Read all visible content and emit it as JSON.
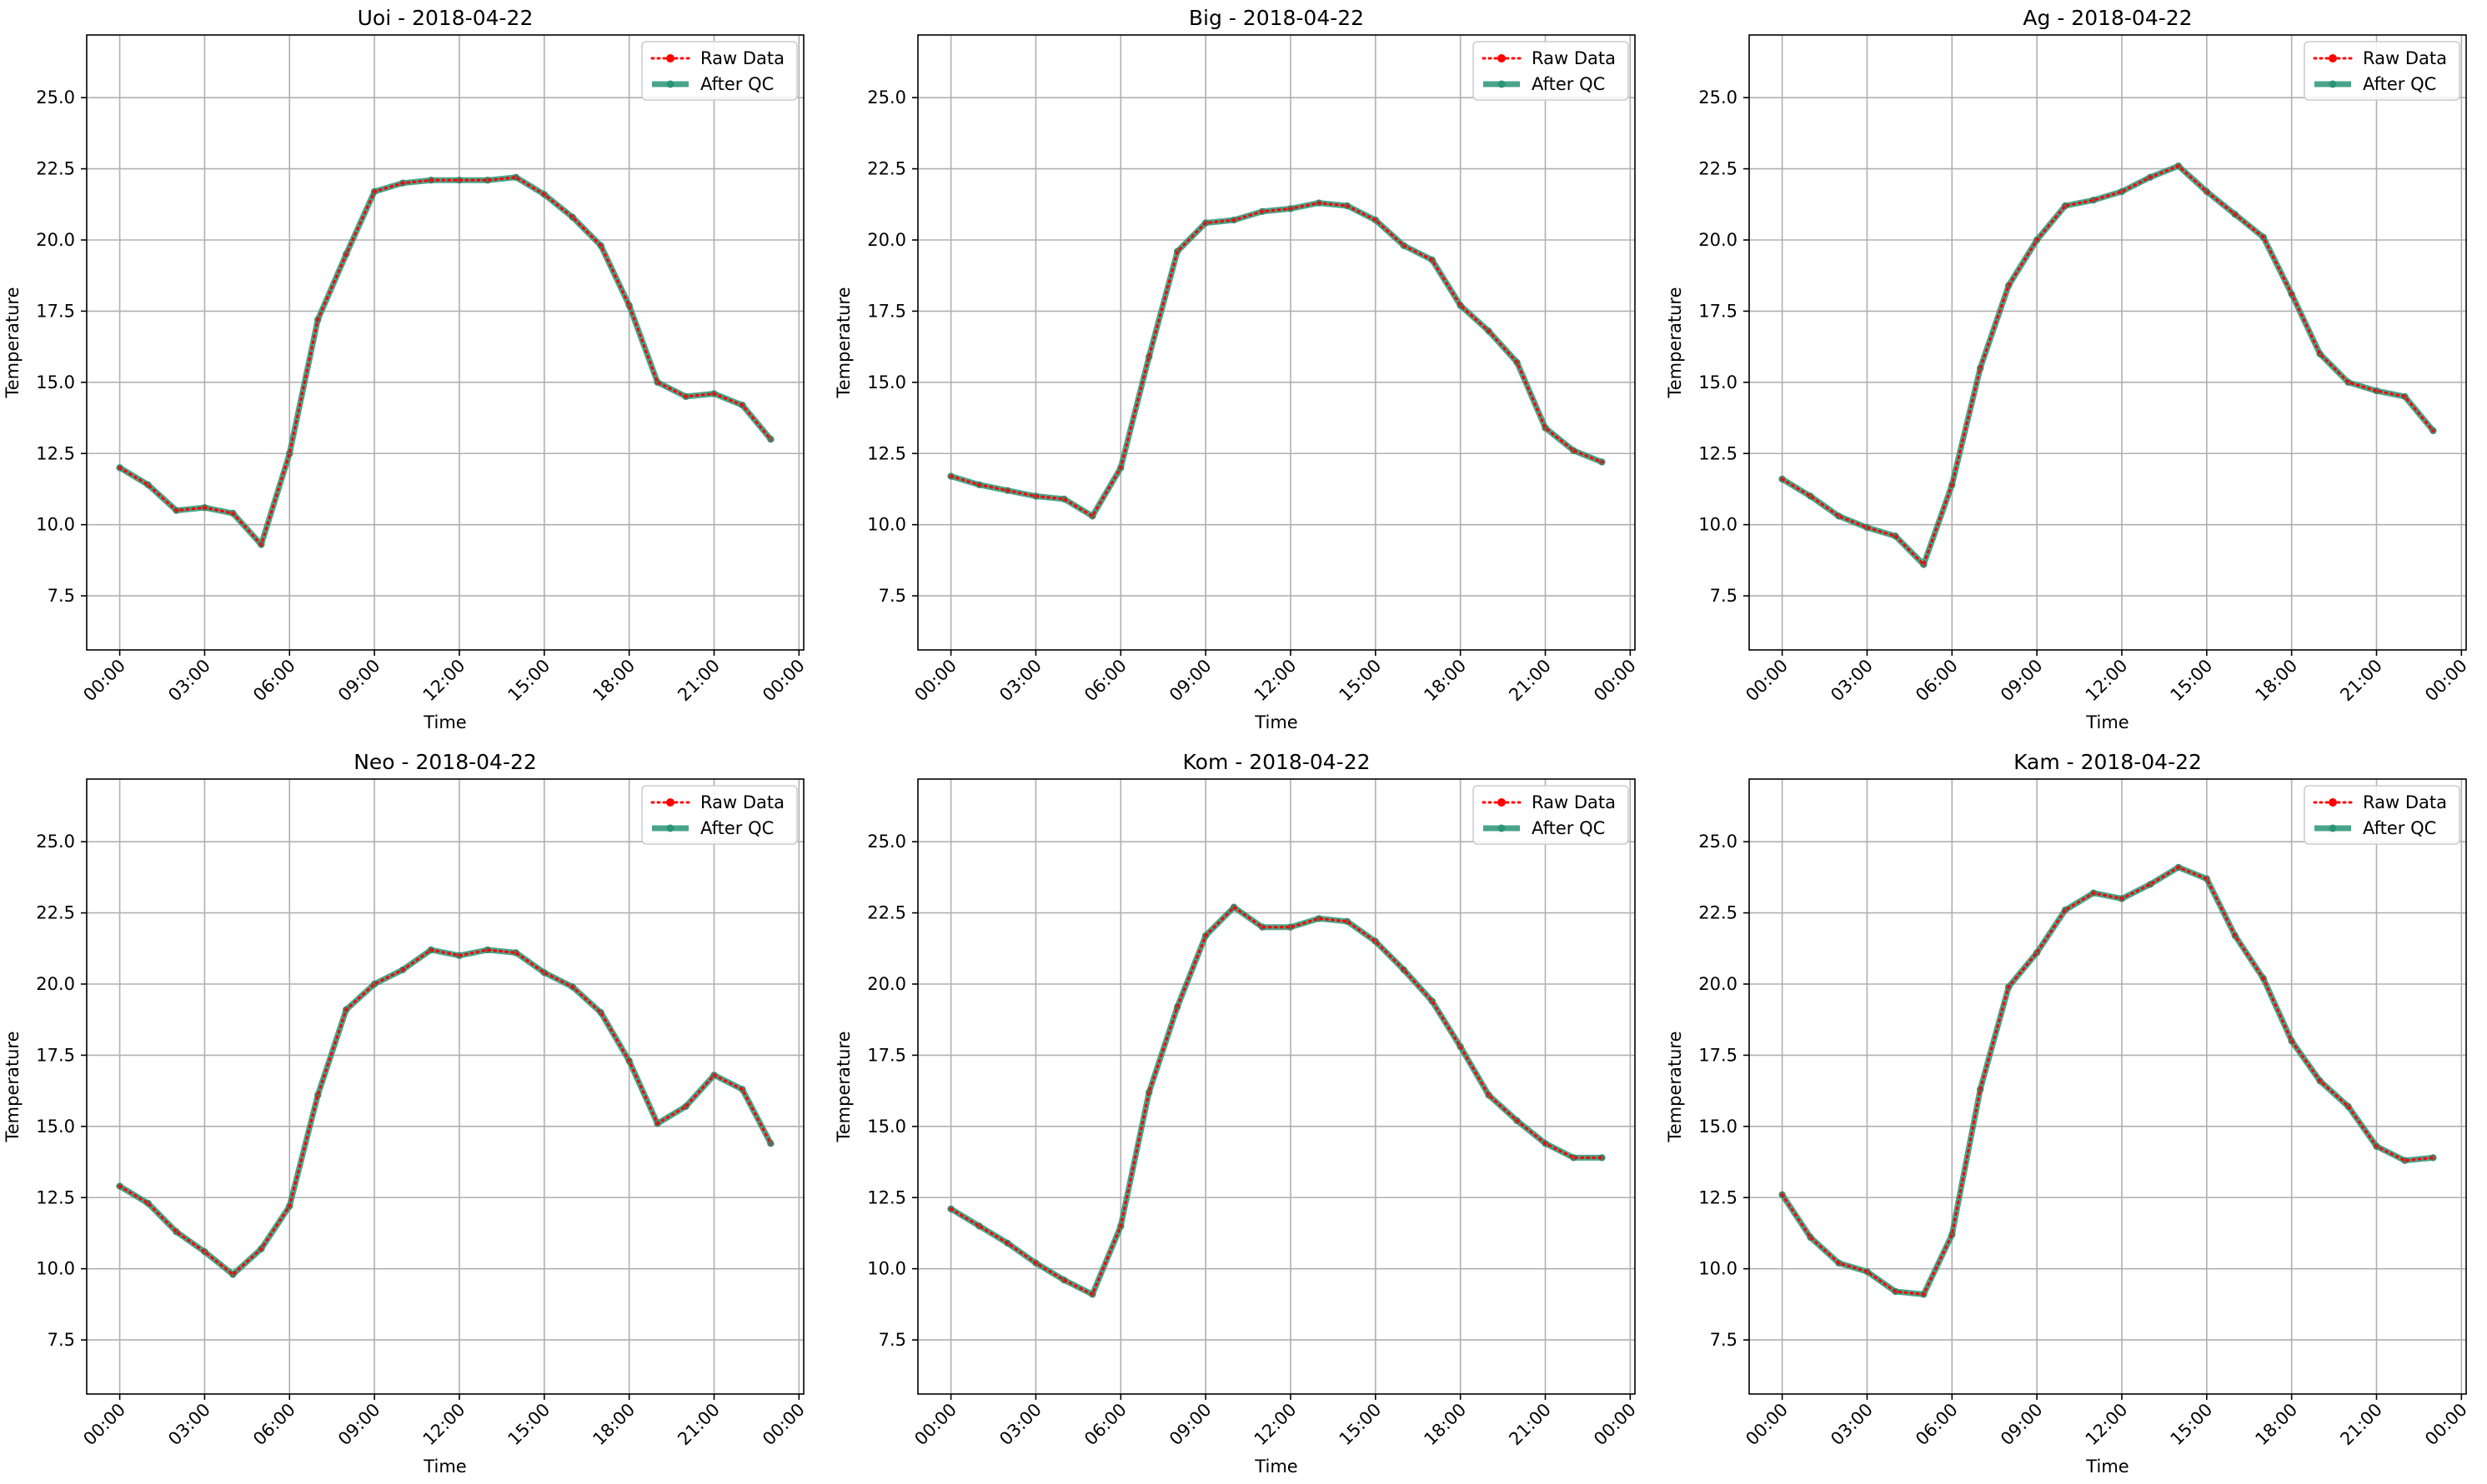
{
  "colors": {
    "raw": "#ff0000",
    "qc": "#2a9476",
    "grid": "#b0b0b0",
    "axis": "#000000"
  },
  "chart_data": [
    {
      "type": "line",
      "title": "Uoi - 2018-04-22",
      "xlabel": "Time",
      "ylabel": "Temperature",
      "xticks": [
        "00:00",
        "03:00",
        "06:00",
        "09:00",
        "12:00",
        "15:00",
        "18:00",
        "21:00",
        "00:00"
      ],
      "xlim": [
        "2018-04-21T22:50",
        "2018-04-23T00:10"
      ],
      "ylim": [
        5.6,
        27.2
      ],
      "yticks": [
        7.5,
        10.0,
        12.5,
        15.0,
        17.5,
        20.0,
        22.5,
        25.0
      ],
      "grid": true,
      "legend_position": "top-right",
      "x": [
        "00:00",
        "01:00",
        "02:00",
        "03:00",
        "04:00",
        "05:00",
        "06:00",
        "07:00",
        "08:00",
        "09:00",
        "10:00",
        "11:00",
        "12:00",
        "13:00",
        "14:00",
        "15:00",
        "16:00",
        "17:00",
        "18:00",
        "19:00",
        "20:00",
        "21:00",
        "22:00",
        "23:00"
      ],
      "series": [
        {
          "name": "Raw Data",
          "values": [
            12.0,
            11.4,
            10.5,
            10.6,
            10.4,
            9.3,
            12.5,
            17.2,
            19.5,
            21.7,
            22.0,
            22.1,
            22.1,
            22.1,
            22.2,
            21.6,
            20.8,
            19.8,
            17.7,
            15.0,
            14.5,
            14.6,
            14.2,
            13.0
          ]
        },
        {
          "name": "After QC",
          "values": [
            12.0,
            11.4,
            10.5,
            10.6,
            10.4,
            9.3,
            12.5,
            17.2,
            19.5,
            21.7,
            22.0,
            22.1,
            22.1,
            22.1,
            22.2,
            21.6,
            20.8,
            19.8,
            17.7,
            15.0,
            14.5,
            14.6,
            14.2,
            13.0
          ]
        }
      ]
    },
    {
      "type": "line",
      "title": "Big - 2018-04-22",
      "xlabel": "Time",
      "ylabel": "Temperature",
      "xticks": [
        "00:00",
        "03:00",
        "06:00",
        "09:00",
        "12:00",
        "15:00",
        "18:00",
        "21:00",
        "00:00"
      ],
      "xlim": [
        "2018-04-21T22:50",
        "2018-04-23T00:10"
      ],
      "ylim": [
        5.6,
        27.2
      ],
      "yticks": [
        7.5,
        10.0,
        12.5,
        15.0,
        17.5,
        20.0,
        22.5,
        25.0
      ],
      "grid": true,
      "legend_position": "top-right",
      "x": [
        "00:00",
        "01:00",
        "02:00",
        "03:00",
        "04:00",
        "05:00",
        "06:00",
        "07:00",
        "08:00",
        "09:00",
        "10:00",
        "11:00",
        "12:00",
        "13:00",
        "14:00",
        "15:00",
        "16:00",
        "17:00",
        "18:00",
        "19:00",
        "20:00",
        "21:00",
        "22:00",
        "23:00"
      ],
      "series": [
        {
          "name": "Raw Data",
          "values": [
            11.7,
            11.4,
            11.2,
            11.0,
            10.9,
            10.3,
            12.0,
            15.9,
            19.6,
            20.6,
            20.7,
            21.0,
            21.1,
            21.3,
            21.2,
            20.7,
            19.8,
            19.3,
            17.7,
            16.8,
            15.7,
            13.4,
            12.6,
            12.2
          ]
        },
        {
          "name": "After QC",
          "values": [
            11.7,
            11.4,
            11.2,
            11.0,
            10.9,
            10.3,
            12.0,
            15.9,
            19.6,
            20.6,
            20.7,
            21.0,
            21.1,
            21.3,
            21.2,
            20.7,
            19.8,
            19.3,
            17.7,
            16.8,
            15.7,
            13.4,
            12.6,
            12.2
          ]
        }
      ]
    },
    {
      "type": "line",
      "title": "Ag - 2018-04-22",
      "xlabel": "Time",
      "ylabel": "Temperature",
      "xticks": [
        "00:00",
        "03:00",
        "06:00",
        "09:00",
        "12:00",
        "15:00",
        "18:00",
        "21:00",
        "00:00"
      ],
      "xlim": [
        "2018-04-21T22:50",
        "2018-04-23T00:10"
      ],
      "ylim": [
        5.6,
        27.2
      ],
      "yticks": [
        7.5,
        10.0,
        12.5,
        15.0,
        17.5,
        20.0,
        22.5,
        25.0
      ],
      "grid": true,
      "legend_position": "top-right",
      "x": [
        "00:00",
        "01:00",
        "02:00",
        "03:00",
        "04:00",
        "05:00",
        "06:00",
        "07:00",
        "08:00",
        "09:00",
        "10:00",
        "11:00",
        "12:00",
        "13:00",
        "14:00",
        "15:00",
        "16:00",
        "17:00",
        "18:00",
        "19:00",
        "20:00",
        "21:00",
        "22:00",
        "23:00"
      ],
      "series": [
        {
          "name": "Raw Data",
          "values": [
            11.6,
            11.0,
            10.3,
            9.9,
            9.6,
            8.6,
            11.4,
            15.5,
            18.4,
            20.0,
            21.2,
            21.4,
            21.7,
            22.2,
            22.6,
            21.7,
            20.9,
            20.1,
            18.1,
            16.0,
            15.0,
            14.7,
            14.5,
            13.3
          ]
        },
        {
          "name": "After QC",
          "values": [
            11.6,
            11.0,
            10.3,
            9.9,
            9.6,
            8.6,
            11.4,
            15.5,
            18.4,
            20.0,
            21.2,
            21.4,
            21.7,
            22.2,
            22.6,
            21.7,
            20.9,
            20.1,
            18.1,
            16.0,
            15.0,
            14.7,
            14.5,
            13.3
          ]
        }
      ]
    },
    {
      "type": "line",
      "title": "Neo - 2018-04-22",
      "xlabel": "Time",
      "ylabel": "Temperature",
      "xticks": [
        "00:00",
        "03:00",
        "06:00",
        "09:00",
        "12:00",
        "15:00",
        "18:00",
        "21:00",
        "00:00"
      ],
      "xlim": [
        "2018-04-21T22:50",
        "2018-04-23T00:10"
      ],
      "ylim": [
        5.6,
        27.2
      ],
      "yticks": [
        7.5,
        10.0,
        12.5,
        15.0,
        17.5,
        20.0,
        22.5,
        25.0
      ],
      "grid": true,
      "legend_position": "top-right",
      "x": [
        "00:00",
        "01:00",
        "02:00",
        "03:00",
        "04:00",
        "05:00",
        "06:00",
        "07:00",
        "08:00",
        "09:00",
        "10:00",
        "11:00",
        "12:00",
        "13:00",
        "14:00",
        "15:00",
        "16:00",
        "17:00",
        "18:00",
        "19:00",
        "20:00",
        "21:00",
        "22:00",
        "23:00"
      ],
      "series": [
        {
          "name": "Raw Data",
          "values": [
            12.9,
            12.3,
            11.3,
            10.6,
            9.8,
            10.7,
            12.2,
            16.1,
            19.1,
            20.0,
            20.5,
            21.2,
            21.0,
            21.2,
            21.1,
            20.4,
            19.9,
            19.0,
            17.3,
            15.1,
            15.7,
            16.8,
            16.3,
            14.4
          ]
        },
        {
          "name": "After QC",
          "values": [
            12.9,
            12.3,
            11.3,
            10.6,
            9.8,
            10.7,
            12.2,
            16.1,
            19.1,
            20.0,
            20.5,
            21.2,
            21.0,
            21.2,
            21.1,
            20.4,
            19.9,
            19.0,
            17.3,
            15.1,
            15.7,
            16.8,
            16.3,
            14.4
          ]
        }
      ]
    },
    {
      "type": "line",
      "title": "Kom - 2018-04-22",
      "xlabel": "Time",
      "ylabel": "Temperature",
      "xticks": [
        "00:00",
        "03:00",
        "06:00",
        "09:00",
        "12:00",
        "15:00",
        "18:00",
        "21:00",
        "00:00"
      ],
      "xlim": [
        "2018-04-21T22:50",
        "2018-04-23T00:10"
      ],
      "ylim": [
        5.6,
        27.2
      ],
      "yticks": [
        7.5,
        10.0,
        12.5,
        15.0,
        17.5,
        20.0,
        22.5,
        25.0
      ],
      "grid": true,
      "legend_position": "top-right",
      "x": [
        "00:00",
        "01:00",
        "02:00",
        "03:00",
        "04:00",
        "05:00",
        "06:00",
        "07:00",
        "08:00",
        "09:00",
        "10:00",
        "11:00",
        "12:00",
        "13:00",
        "14:00",
        "15:00",
        "16:00",
        "17:00",
        "18:00",
        "19:00",
        "20:00",
        "21:00",
        "22:00",
        "23:00"
      ],
      "series": [
        {
          "name": "Raw Data",
          "values": [
            12.1,
            11.5,
            10.9,
            10.2,
            9.6,
            9.1,
            11.5,
            16.2,
            19.2,
            21.7,
            22.7,
            22.0,
            22.0,
            22.3,
            22.2,
            21.5,
            20.5,
            19.4,
            17.8,
            16.1,
            15.2,
            14.4,
            13.9,
            13.9
          ]
        },
        {
          "name": "After QC",
          "values": [
            12.1,
            11.5,
            10.9,
            10.2,
            9.6,
            9.1,
            11.5,
            16.2,
            19.2,
            21.7,
            22.7,
            22.0,
            22.0,
            22.3,
            22.2,
            21.5,
            20.5,
            19.4,
            17.8,
            16.1,
            15.2,
            14.4,
            13.9,
            13.9
          ]
        }
      ]
    },
    {
      "type": "line",
      "title": "Kam - 2018-04-22",
      "xlabel": "Time",
      "ylabel": "Temperature",
      "xticks": [
        "00:00",
        "03:00",
        "06:00",
        "09:00",
        "12:00",
        "15:00",
        "18:00",
        "21:00",
        "00:00"
      ],
      "xlim": [
        "2018-04-21T22:50",
        "2018-04-23T00:10"
      ],
      "ylim": [
        5.6,
        27.2
      ],
      "yticks": [
        7.5,
        10.0,
        12.5,
        15.0,
        17.5,
        20.0,
        22.5,
        25.0
      ],
      "grid": true,
      "legend_position": "top-right",
      "x": [
        "00:00",
        "01:00",
        "02:00",
        "03:00",
        "04:00",
        "05:00",
        "06:00",
        "07:00",
        "08:00",
        "09:00",
        "10:00",
        "11:00",
        "12:00",
        "13:00",
        "14:00",
        "15:00",
        "16:00",
        "17:00",
        "18:00",
        "19:00",
        "20:00",
        "21:00",
        "22:00",
        "23:00"
      ],
      "series": [
        {
          "name": "Raw Data",
          "values": [
            12.6,
            11.1,
            10.2,
            9.9,
            9.2,
            9.1,
            11.2,
            16.3,
            19.9,
            21.1,
            22.6,
            23.2,
            23.0,
            23.5,
            24.1,
            23.7,
            21.7,
            20.2,
            18.0,
            16.6,
            15.7,
            14.3,
            13.8,
            13.9
          ]
        },
        {
          "name": "After QC",
          "values": [
            12.6,
            11.1,
            10.2,
            9.9,
            9.2,
            9.1,
            11.2,
            16.3,
            19.9,
            21.1,
            22.6,
            23.2,
            23.0,
            23.5,
            24.1,
            23.7,
            21.7,
            20.2,
            18.0,
            16.6,
            15.7,
            14.3,
            13.8,
            13.9
          ]
        }
      ]
    }
  ]
}
